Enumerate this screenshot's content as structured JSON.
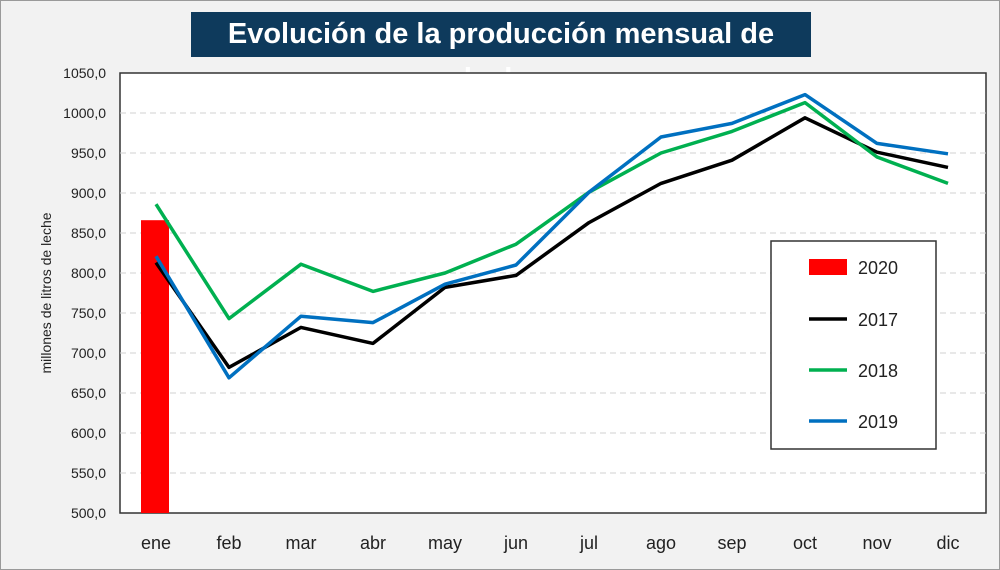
{
  "chart_data": {
    "type": "line",
    "title": "Evolución de la producción mensual de leche",
    "ylabel": "millones de litros de leche",
    "xlabel": "",
    "categories": [
      "ene",
      "feb",
      "mar",
      "abr",
      "may",
      "jun",
      "jul",
      "ago",
      "sep",
      "oct",
      "nov",
      "dic"
    ],
    "ylim": [
      500,
      1050
    ],
    "yticks": [
      "500,0",
      "550,0",
      "600,0",
      "650,0",
      "700,0",
      "750,0",
      "800,0",
      "850,0",
      "900,0",
      "950,0",
      "1000,0",
      "1050,0"
    ],
    "grid": "horizontal dashed",
    "legend_position": "right",
    "bar_series": {
      "name": "2020",
      "color": "#ff0000",
      "values": [
        866
      ]
    },
    "series": [
      {
        "name": "2017",
        "color": "#000000",
        "values": [
          813,
          682,
          732,
          712,
          782,
          797,
          863,
          912,
          941,
          994,
          951,
          932
        ]
      },
      {
        "name": "2018",
        "color": "#00b050",
        "values": [
          886,
          743,
          811,
          777,
          800,
          836,
          901,
          950,
          977,
          1013,
          945,
          912
        ]
      },
      {
        "name": "2019",
        "color": "#0070c0",
        "values": [
          821,
          669,
          746,
          738,
          786,
          810,
          901,
          970,
          987,
          1023,
          962,
          949
        ]
      }
    ]
  }
}
